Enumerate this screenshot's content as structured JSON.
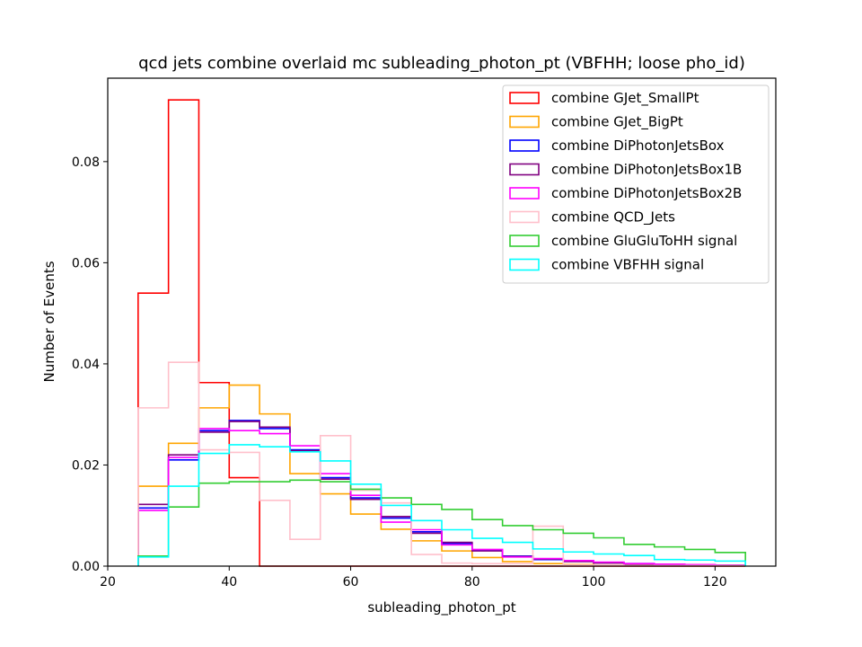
{
  "chart_data": {
    "type": "histogram-step",
    "title": "qcd jets combine overlaid mc subleading_photon_pt (VBFHH; loose pho_id)",
    "xlabel": "subleading_photon_pt",
    "ylabel": "Number of Events",
    "xlim": [
      20,
      130
    ],
    "ylim": [
      0,
      0.0965
    ],
    "xticks": [
      20,
      40,
      60,
      80,
      100,
      120
    ],
    "yticks": [
      0.0,
      0.02,
      0.04,
      0.06,
      0.08
    ],
    "ytick_labels": [
      "0.00",
      "0.02",
      "0.04",
      "0.06",
      "0.08"
    ],
    "bin_edges": [
      25,
      30,
      35,
      40,
      45,
      50,
      55,
      60,
      65,
      70,
      75,
      80,
      85,
      90,
      95,
      100,
      105,
      110,
      115,
      120,
      125
    ],
    "legend_position": "upper right",
    "grid": false,
    "series": [
      {
        "name": "combine GJet_SmallPt",
        "color": "#ff0000",
        "values": [
          0.054,
          0.0922,
          0.0363,
          0.0175,
          0.0,
          0.0,
          0.0,
          0.0,
          0.0,
          0.0,
          0.0,
          0.0,
          0.0,
          0.0,
          0.0,
          0.0,
          0.0,
          0.0,
          0.0,
          0.0
        ]
      },
      {
        "name": "combine GJet_BigPt",
        "color": "#ffa500",
        "values": [
          0.0158,
          0.0243,
          0.0313,
          0.0358,
          0.0301,
          0.0183,
          0.0143,
          0.0103,
          0.0073,
          0.005,
          0.003,
          0.0017,
          0.0009,
          0.0005,
          0.0003,
          0.0002,
          0.0001,
          0.0001,
          0.0001,
          0.0001
        ]
      },
      {
        "name": "combine DiPhotonJetsBox",
        "color": "#0000ff",
        "values": [
          0.0115,
          0.021,
          0.0268,
          0.0288,
          0.0272,
          0.023,
          0.0175,
          0.0135,
          0.0095,
          0.0068,
          0.0045,
          0.0031,
          0.002,
          0.0013,
          0.001,
          0.0007,
          0.0005,
          0.0004,
          0.0003,
          0.0002
        ]
      },
      {
        "name": "combine DiPhotonJetsBox1B",
        "color": "#800080",
        "values": [
          0.0122,
          0.022,
          0.0265,
          0.0286,
          0.0275,
          0.0228,
          0.0172,
          0.0132,
          0.0098,
          0.0065,
          0.0047,
          0.003,
          0.0019,
          0.0014,
          0.0009,
          0.0006,
          0.0004,
          0.0003,
          0.0003,
          0.0002
        ]
      },
      {
        "name": "combine DiPhotonJetsBox2B",
        "color": "#ff00ff",
        "values": [
          0.011,
          0.0215,
          0.0272,
          0.0268,
          0.0262,
          0.0238,
          0.0183,
          0.014,
          0.0087,
          0.0072,
          0.0042,
          0.0033,
          0.0018,
          0.0015,
          0.0011,
          0.0008,
          0.0005,
          0.0004,
          0.0003,
          0.0002
        ]
      },
      {
        "name": "combine QCD_Jets",
        "color": "#ffc0cb",
        "values": [
          0.0313,
          0.0403,
          0.023,
          0.0225,
          0.013,
          0.0053,
          0.0258,
          0.015,
          0.0125,
          0.0023,
          0.0006,
          0.0005,
          0.0005,
          0.0079,
          0.0002,
          0.0002,
          0.0001,
          0.0001,
          0.0001,
          0.0001
        ]
      },
      {
        "name": "combine GluGluToHH signal",
        "color": "#32cd32",
        "values": [
          0.002,
          0.0117,
          0.0164,
          0.0167,
          0.0167,
          0.017,
          0.0167,
          0.0152,
          0.0135,
          0.0122,
          0.0112,
          0.0092,
          0.008,
          0.0072,
          0.0065,
          0.0056,
          0.0043,
          0.0038,
          0.0033,
          0.0027
        ]
      },
      {
        "name": "combine VBFHH signal",
        "color": "#00ffff",
        "values": [
          0.0018,
          0.0158,
          0.0223,
          0.024,
          0.0236,
          0.0226,
          0.0208,
          0.0162,
          0.012,
          0.009,
          0.0072,
          0.0055,
          0.0047,
          0.0034,
          0.0028,
          0.0024,
          0.0021,
          0.0013,
          0.0012,
          0.001
        ]
      }
    ]
  }
}
